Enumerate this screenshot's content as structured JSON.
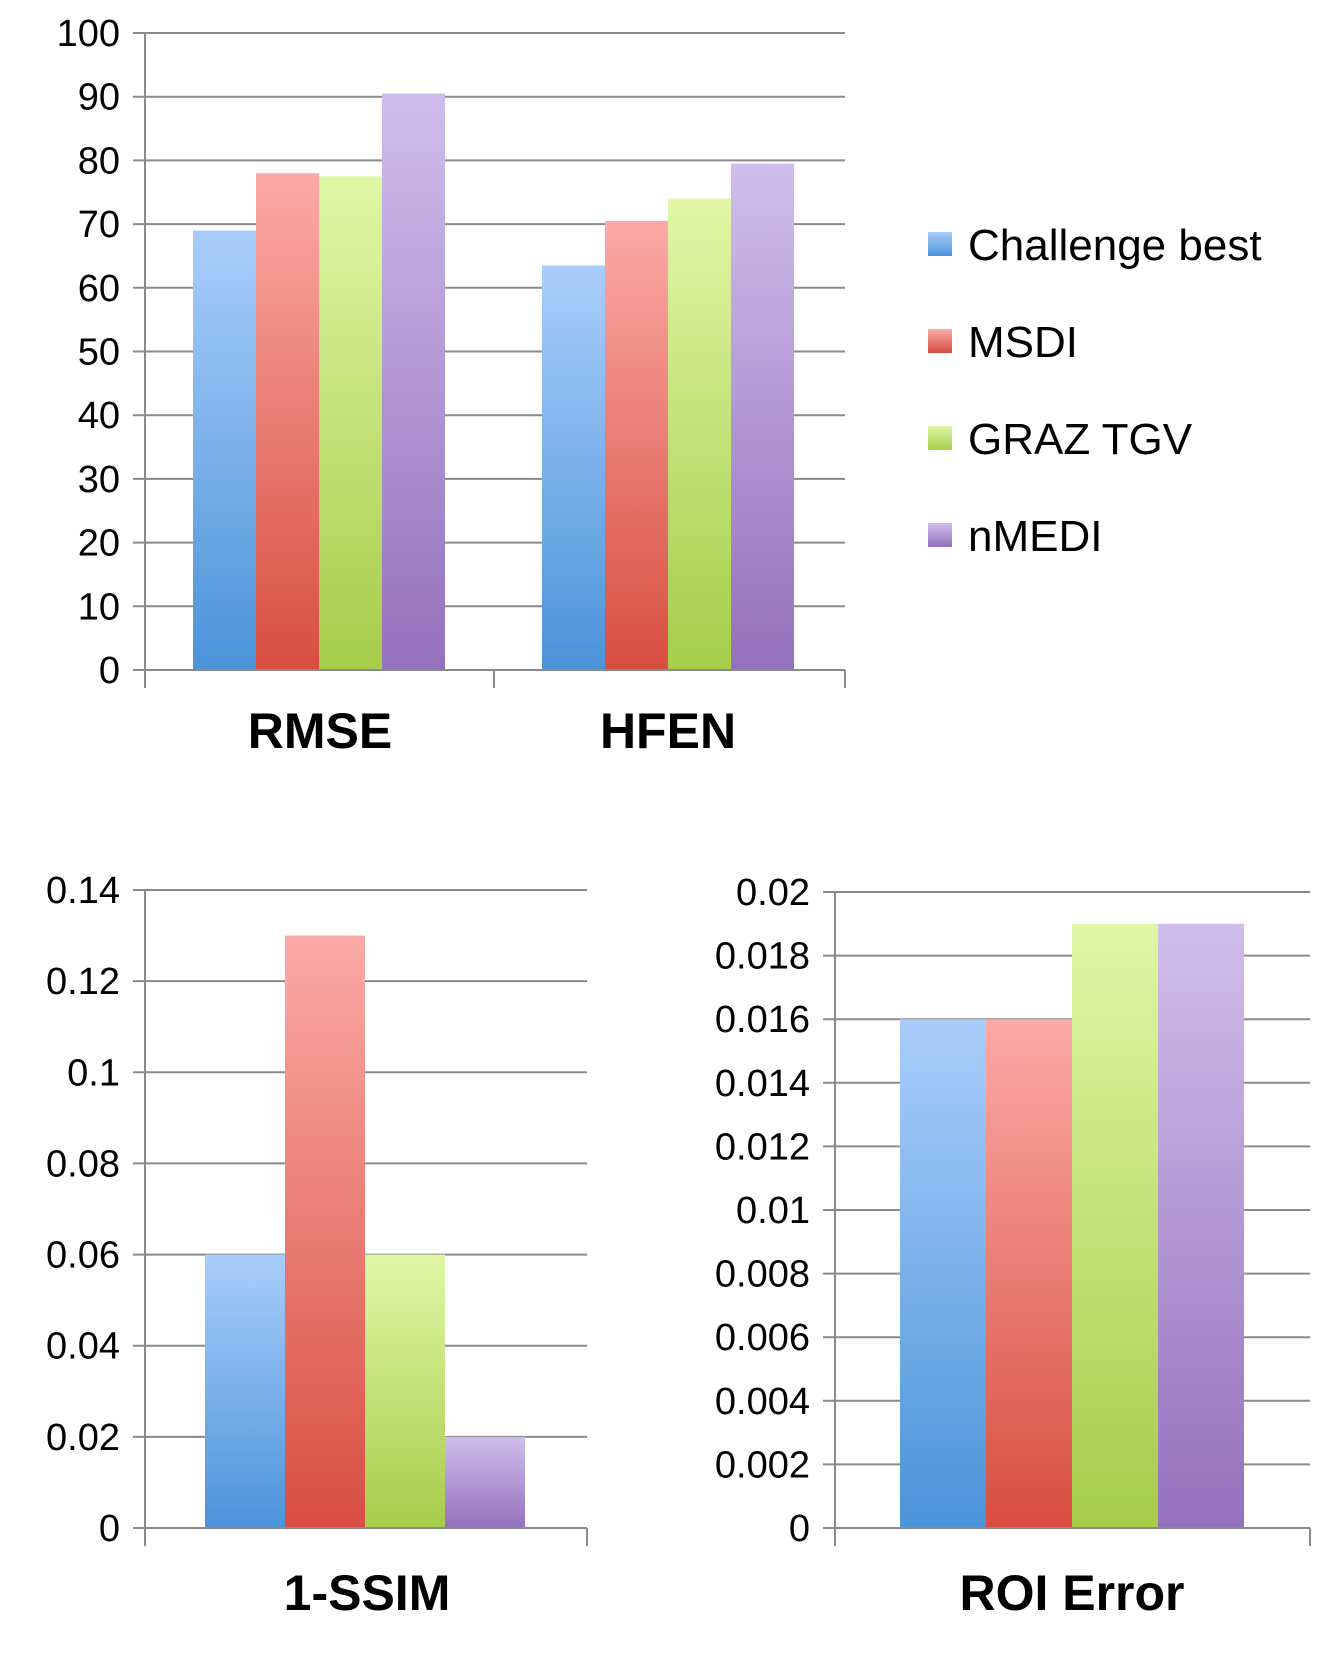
{
  "chart_data": [
    {
      "type": "bar",
      "categories": [
        "RMSE",
        "HFEN"
      ],
      "series": [
        {
          "name": "Challenge best",
          "values": [
            69,
            63.5
          ]
        },
        {
          "name": "MSDI",
          "values": [
            78,
            70.5
          ]
        },
        {
          "name": "GRAZ TGV",
          "values": [
            77.5,
            74
          ]
        },
        {
          "name": "nMEDI",
          "values": [
            90.5,
            79.5
          ]
        }
      ],
      "yticks": [
        "0",
        "10",
        "20",
        "30",
        "40",
        "50",
        "60",
        "70",
        "80",
        "90",
        "100"
      ],
      "ylim": [
        0,
        100
      ],
      "title": "",
      "xlabel": "",
      "ylabel": ""
    },
    {
      "type": "bar",
      "categories": [
        "1-SSIM"
      ],
      "series": [
        {
          "name": "Challenge best",
          "values": [
            0.06
          ]
        },
        {
          "name": "MSDI",
          "values": [
            0.13
          ]
        },
        {
          "name": "GRAZ TGV",
          "values": [
            0.06
          ]
        },
        {
          "name": "nMEDI",
          "values": [
            0.02
          ]
        }
      ],
      "yticks": [
        "0",
        "0.02",
        "0.04",
        "0.06",
        "0.08",
        "0.1",
        "0.12",
        "0.14"
      ],
      "ylim": [
        0,
        0.14
      ],
      "title": "",
      "xlabel": "",
      "ylabel": ""
    },
    {
      "type": "bar",
      "categories": [
        "ROI Error"
      ],
      "series": [
        {
          "name": "Challenge best",
          "values": [
            0.016
          ]
        },
        {
          "name": "MSDI",
          "values": [
            0.016
          ]
        },
        {
          "name": "GRAZ TGV",
          "values": [
            0.019
          ]
        },
        {
          "name": "nMEDI",
          "values": [
            0.019
          ]
        }
      ],
      "yticks": [
        "0",
        "0.002",
        "0.004",
        "0.006",
        "0.008",
        "0.01",
        "0.012",
        "0.014",
        "0.016",
        "0.018",
        "0.02"
      ],
      "ylim": [
        0,
        0.02
      ],
      "title": "",
      "xlabel": "",
      "ylabel": ""
    }
  ],
  "legend": {
    "position": "right",
    "items": [
      "Challenge best",
      "MSDI",
      "GRAZ TGV",
      "nMEDI"
    ]
  },
  "colors": {
    "Challenge best": {
      "top": "#a9cdfb",
      "bottom": "#4b94d8"
    },
    "MSDI": {
      "top": "#fbaaa6",
      "bottom": "#d84e41"
    },
    "GRAZ TGV": {
      "top": "#dff7a6",
      "bottom": "#a6cd4a"
    },
    "nMEDI": {
      "top": "#d1bdec",
      "bottom": "#9471bc"
    },
    "grid": "#8a8a8a"
  }
}
